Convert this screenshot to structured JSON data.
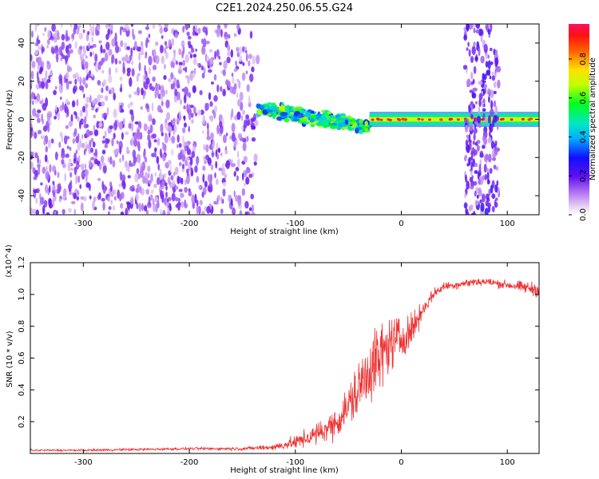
{
  "title": "C2E1.2024.250.06.55.G24",
  "colors": {
    "snr_line": "#ee3333",
    "axis": "#000000",
    "background": "#ffffff"
  },
  "chart_data": [
    {
      "type": "heatmap",
      "xlabel": "Height of straight line (km)",
      "ylabel": "Frequency (Hz)",
      "xlim": [
        -350,
        130
      ],
      "ylim": [
        -50,
        50
      ],
      "xticks": [
        -300,
        -200,
        -100,
        0,
        100
      ],
      "yticks": [
        -40,
        -20,
        0,
        20,
        40
      ],
      "colorbar": {
        "label": "Normalized spectral amplitude",
        "range": [
          0.0,
          0.98
        ],
        "ticks": [
          0.0,
          0.2,
          0.4,
          0.6,
          0.8
        ],
        "colormap": "rainbow (white-magenta-violet-blue-cyan-green-yellow-orange-red-pink)"
      },
      "description_regions": [
        {
          "x_range": [
            -350,
            -135
          ],
          "freq_range": [
            -50,
            50
          ],
          "amplitude": 0.12,
          "pattern": "noise"
        },
        {
          "x_range": [
            -135,
            -30
          ],
          "freq_range": [
            -10,
            12
          ],
          "amplitude": 0.5,
          "pattern": "descending band"
        },
        {
          "x_range": [
            -30,
            130
          ],
          "freq_range": [
            -3,
            3
          ],
          "amplitude": 0.7,
          "pattern": "narrow carrier line"
        },
        {
          "x_range": [
            60,
            92
          ],
          "freq_range": [
            -50,
            50
          ],
          "amplitude": 0.15,
          "pattern": "noise band"
        }
      ]
    },
    {
      "type": "line",
      "xlabel": "Height of straight line (km)",
      "ylabel": "SNR (10 * v/v)",
      "exponent_label": "(x10^4)",
      "xlim": [
        -350,
        130
      ],
      "ylim": [
        0,
        1.2
      ],
      "xticks": [
        -300,
        -200,
        -100,
        0,
        100
      ],
      "yticks": [
        0.2,
        0.4,
        0.6,
        0.8,
        1.0,
        1.2
      ],
      "series": [
        {
          "x": [
            -350,
            -300,
            -250,
            -200,
            -150,
            -120,
            -100,
            -80,
            -60,
            -50,
            -40,
            -30,
            -20,
            -10,
            0,
            10,
            20,
            30,
            40,
            50,
            60,
            70,
            80,
            90,
            100,
            110,
            120,
            130
          ],
          "y": [
            0.02,
            0.02,
            0.025,
            0.03,
            0.03,
            0.04,
            0.07,
            0.12,
            0.2,
            0.3,
            0.4,
            0.55,
            0.6,
            0.7,
            0.72,
            0.78,
            0.9,
            1.0,
            1.05,
            1.06,
            1.07,
            1.08,
            1.08,
            1.07,
            1.06,
            1.05,
            1.04,
            1.03
          ],
          "yerr": [
            0.01,
            0.01,
            0.012,
            0.012,
            0.015,
            0.03,
            0.06,
            0.1,
            0.14,
            0.2,
            0.28,
            0.35,
            0.32,
            0.25,
            0.2,
            0.15,
            0.08,
            0.05,
            0.04,
            0.04,
            0.04,
            0.04,
            0.04,
            0.04,
            0.04,
            0.05,
            0.06,
            0.07
          ]
        }
      ]
    }
  ]
}
